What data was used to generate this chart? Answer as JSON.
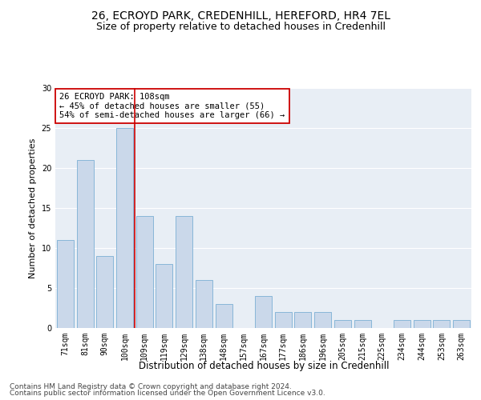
{
  "title1": "26, ECROYD PARK, CREDENHILL, HEREFORD, HR4 7EL",
  "title2": "Size of property relative to detached houses in Credenhill",
  "xlabel": "Distribution of detached houses by size in Credenhill",
  "ylabel": "Number of detached properties",
  "categories": [
    "71sqm",
    "81sqm",
    "90sqm",
    "100sqm",
    "109sqm",
    "119sqm",
    "129sqm",
    "138sqm",
    "148sqm",
    "157sqm",
    "167sqm",
    "177sqm",
    "186sqm",
    "196sqm",
    "205sqm",
    "215sqm",
    "225sqm",
    "234sqm",
    "244sqm",
    "253sqm",
    "263sqm"
  ],
  "values": [
    11,
    21,
    9,
    25,
    14,
    8,
    14,
    6,
    3,
    0,
    4,
    2,
    2,
    2,
    1,
    1,
    0,
    1,
    1,
    1,
    1
  ],
  "bar_color": "#cad8ea",
  "bar_edgecolor": "#7bafd4",
  "vline_color": "#cc0000",
  "vline_x": 3.5,
  "annotation_line1": "26 ECROYD PARK: 108sqm",
  "annotation_line2": "← 45% of detached houses are smaller (55)",
  "annotation_line3": "54% of semi-detached houses are larger (66) →",
  "annotation_box_color": "#cc0000",
  "annotation_box_facecolor": "white",
  "ylim": [
    0,
    30
  ],
  "yticks": [
    0,
    5,
    10,
    15,
    20,
    25,
    30
  ],
  "background_color": "#e8eef5",
  "footer1": "Contains HM Land Registry data © Crown copyright and database right 2024.",
  "footer2": "Contains public sector information licensed under the Open Government Licence v3.0.",
  "title1_fontsize": 10,
  "title2_fontsize": 9,
  "xlabel_fontsize": 8.5,
  "ylabel_fontsize": 8,
  "tick_fontsize": 7,
  "annotation_fontsize": 7.5,
  "footer_fontsize": 6.5
}
